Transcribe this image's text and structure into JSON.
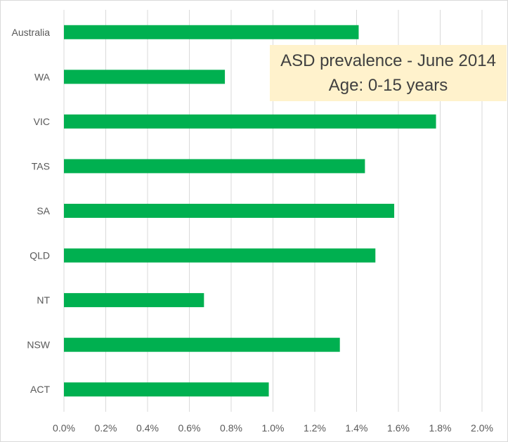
{
  "chart_data": {
    "type": "bar",
    "orientation": "horizontal",
    "title": "ASD prevalence - June 2014",
    "subtitle": "Age: 0-15 years",
    "categories": [
      "Australia",
      "WA",
      "VIC",
      "TAS",
      "SA",
      "QLD",
      "NT",
      "NSW",
      "ACT"
    ],
    "values": [
      1.41,
      0.77,
      1.78,
      1.44,
      1.58,
      1.49,
      0.67,
      1.32,
      0.98
    ],
    "value_unit": "%",
    "xlim": [
      0,
      2.0
    ],
    "x_ticks": [
      "0.0%",
      "0.2%",
      "0.4%",
      "0.6%",
      "0.8%",
      "1.0%",
      "1.2%",
      "1.4%",
      "1.6%",
      "1.8%",
      "2.0%"
    ],
    "xlabel": "",
    "ylabel": "",
    "grid": "vertical",
    "legend": "none",
    "colors": {
      "bar": "#00b050",
      "grid": "#d9d9d9",
      "title_background": "#fff2cc"
    }
  }
}
